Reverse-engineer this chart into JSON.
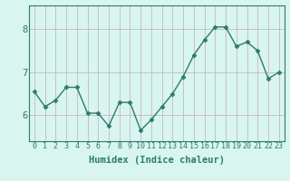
{
  "x": [
    0,
    1,
    2,
    3,
    4,
    5,
    6,
    7,
    8,
    9,
    10,
    11,
    12,
    13,
    14,
    15,
    16,
    17,
    18,
    19,
    20,
    21,
    22,
    23
  ],
  "y": [
    6.55,
    6.2,
    6.35,
    6.65,
    6.65,
    6.05,
    6.05,
    5.75,
    6.3,
    6.3,
    5.65,
    5.9,
    6.2,
    6.5,
    6.9,
    7.4,
    7.75,
    8.05,
    8.05,
    7.6,
    7.7,
    7.5,
    6.85,
    7.0
  ],
  "line_color": "#2d7a6e",
  "marker": "D",
  "marker_size": 2.5,
  "bg_color": "#d8f5f0",
  "grid_color": "#c8b8c0",
  "xlabel": "Humidex (Indice chaleur)",
  "ylim": [
    5.4,
    8.55
  ],
  "xlim": [
    -0.5,
    23.5
  ],
  "yticks": [
    6,
    7,
    8
  ],
  "xticks": [
    0,
    1,
    2,
    3,
    4,
    5,
    6,
    7,
    8,
    9,
    10,
    11,
    12,
    13,
    14,
    15,
    16,
    17,
    18,
    19,
    20,
    21,
    22,
    23
  ],
  "tick_fontsize": 6.0,
  "xlabel_fontsize": 7.5,
  "ytick_fontsize": 7.5,
  "linewidth": 1.0
}
